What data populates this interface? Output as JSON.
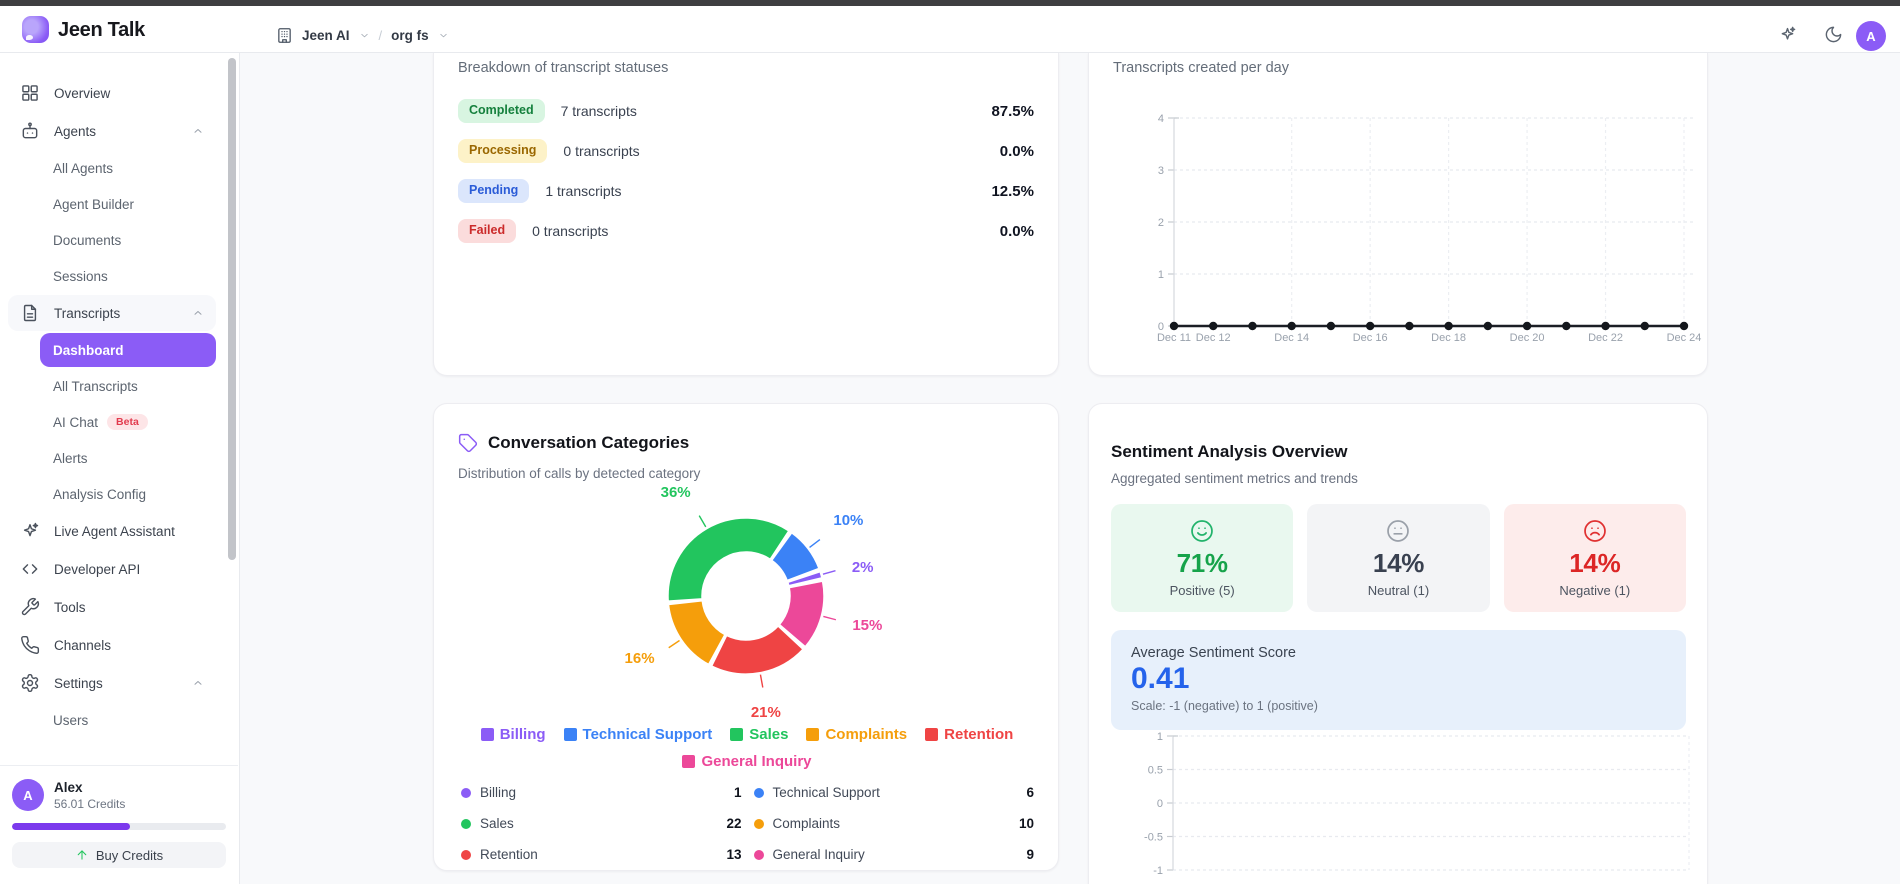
{
  "window": {
    "top_strip_color": "#3e3e41"
  },
  "header": {
    "app_name": "Jeen Talk",
    "breadcrumb": {
      "org": "Jeen AI",
      "separator": "/",
      "project": "org fs"
    },
    "avatar_initial": "A"
  },
  "sidebar": {
    "items": [
      {
        "label": "Overview",
        "icon": "grid"
      },
      {
        "label": "Agents",
        "icon": "robot",
        "expanded": true
      },
      {
        "label": "All Agents",
        "sub": true
      },
      {
        "label": "Agent Builder",
        "sub": true
      },
      {
        "label": "Documents",
        "sub": true
      },
      {
        "label": "Sessions",
        "sub": true
      },
      {
        "label": "Transcripts",
        "icon": "document",
        "expanded": true,
        "highlighted": true
      },
      {
        "label": "Dashboard",
        "sub": true,
        "active": true
      },
      {
        "label": "All Transcripts",
        "sub": true
      },
      {
        "label": "AI Chat",
        "sub": true,
        "badge": "Beta"
      },
      {
        "label": "Alerts",
        "sub": true
      },
      {
        "label": "Analysis Config",
        "sub": true
      },
      {
        "label": "Live Agent Assistant",
        "icon": "sparkles"
      },
      {
        "label": "Developer API",
        "icon": "code"
      },
      {
        "label": "Tools",
        "icon": "wrench"
      },
      {
        "label": "Channels",
        "icon": "phone"
      },
      {
        "label": "Settings",
        "icon": "gear",
        "expanded": true
      },
      {
        "label": "Users",
        "sub": true
      }
    ],
    "user": {
      "initial": "A",
      "name": "Alex",
      "credits": "56.01 Credits",
      "credits_progress_pct": 55,
      "buy_button": "Buy Credits"
    }
  },
  "cards": {
    "status_breakdown": {
      "subtitle": "Breakdown of transcript statuses",
      "rows": [
        {
          "status": "Completed",
          "count_text": "7 transcripts",
          "pct": "87.5%",
          "badge_bg": "#d8f5e1",
          "badge_color": "#15803d"
        },
        {
          "status": "Processing",
          "count_text": "0 transcripts",
          "pct": "0.0%",
          "badge_bg": "#fdf2c8",
          "badge_color": "#9a6700"
        },
        {
          "status": "Pending",
          "count_text": "1 transcripts",
          "pct": "12.5%",
          "badge_bg": "#dbe6fc",
          "badge_color": "#2a5bd7"
        },
        {
          "status": "Failed",
          "count_text": "0 transcripts",
          "pct": "0.0%",
          "badge_bg": "#fbdcdc",
          "badge_color": "#cb2a2a"
        }
      ]
    },
    "transcripts_per_day": {
      "subtitle": "Transcripts created per day"
    },
    "conversation_categories": {
      "title": "Conversation Categories",
      "subtitle": "Distribution of calls by detected category"
    },
    "sentiment": {
      "title": "Sentiment Analysis Overview",
      "subtitle": "Aggregated sentiment metrics and trends",
      "tiles": [
        {
          "pct": "71%",
          "label": "Positive (5)",
          "mood": "smile",
          "bg": "#e9f8ef",
          "accent": "#16a34a",
          "icon_color": "#22b36b"
        },
        {
          "pct": "14%",
          "label": "Neutral (1)",
          "mood": "meh",
          "bg": "#f3f4f6",
          "accent": "#394150",
          "icon_color": "#9aa0a9"
        },
        {
          "pct": "14%",
          "label": "Negative (1)",
          "mood": "frown",
          "bg": "#fdeceb",
          "accent": "#dc2626",
          "icon_color": "#e03131"
        }
      ],
      "average": {
        "label": "Average Sentiment Score",
        "value": "0.41",
        "scale_note": "Scale: -1 (negative) to 1 (positive)",
        "box_bg": "#e7f0fb",
        "value_color": "#2563eb"
      }
    }
  },
  "chart_data": [
    {
      "id": "transcripts-per-day",
      "type": "line",
      "title": "Transcripts created per day",
      "x": [
        "Dec 11",
        "Dec 12",
        "Dec 13",
        "Dec 14",
        "Dec 15",
        "Dec 16",
        "Dec 17",
        "Dec 18",
        "Dec 19",
        "Dec 20",
        "Dec 21",
        "Dec 22",
        "Dec 23",
        "Dec 24"
      ],
      "values": [
        0,
        0,
        0,
        0,
        0,
        0,
        0,
        0,
        0,
        0,
        0,
        0,
        0,
        0
      ],
      "shown_x_labels": [
        "Dec 11",
        "Dec 12",
        "Dec 14",
        "Dec 16",
        "Dec 18",
        "Dec 20",
        "Dec 22",
        "Dec 24"
      ],
      "ylim": [
        0,
        4
      ],
      "yticks": [
        0,
        1,
        2,
        3,
        4
      ],
      "grid": true,
      "legend": "none",
      "line_color": "#1b1e25",
      "point_color": "#14171c"
    },
    {
      "id": "conversation-categories",
      "type": "donut",
      "title": "Conversation Categories",
      "categories": [
        {
          "label": "Billing",
          "value": 1,
          "pct": 2,
          "color": "#8b5cf6"
        },
        {
          "label": "Technical Support",
          "value": 6,
          "pct": 10,
          "color": "#3b82f6"
        },
        {
          "label": "Sales",
          "value": 22,
          "pct": 36,
          "color": "#22c55e"
        },
        {
          "label": "Complaints",
          "value": 10,
          "pct": 16,
          "color": "#f59e0b"
        },
        {
          "label": "Retention",
          "value": 13,
          "pct": 21,
          "color": "#ef4444"
        },
        {
          "label": "General Inquiry",
          "value": 9,
          "pct": 15,
          "color": "#ec4899"
        }
      ],
      "draw_order": [
        "Sales",
        "Technical Support",
        "Billing",
        "General Inquiry",
        "Retention",
        "Complaints"
      ],
      "start_angle_deg": -95,
      "legend_order": [
        "Billing",
        "Technical Support",
        "Sales",
        "Complaints",
        "Retention",
        "General Inquiry"
      ],
      "legend_position": "bottom",
      "slice_label_format": "percent"
    },
    {
      "id": "sentiment-trend",
      "type": "line",
      "title": "",
      "x": [],
      "series": [],
      "ylim": [
        -1,
        1
      ],
      "yticks": [
        1,
        0.5,
        0,
        -0.5,
        -1
      ],
      "grid": true,
      "note": "Axes visible only; chart clipped at bottom of viewport"
    }
  ]
}
